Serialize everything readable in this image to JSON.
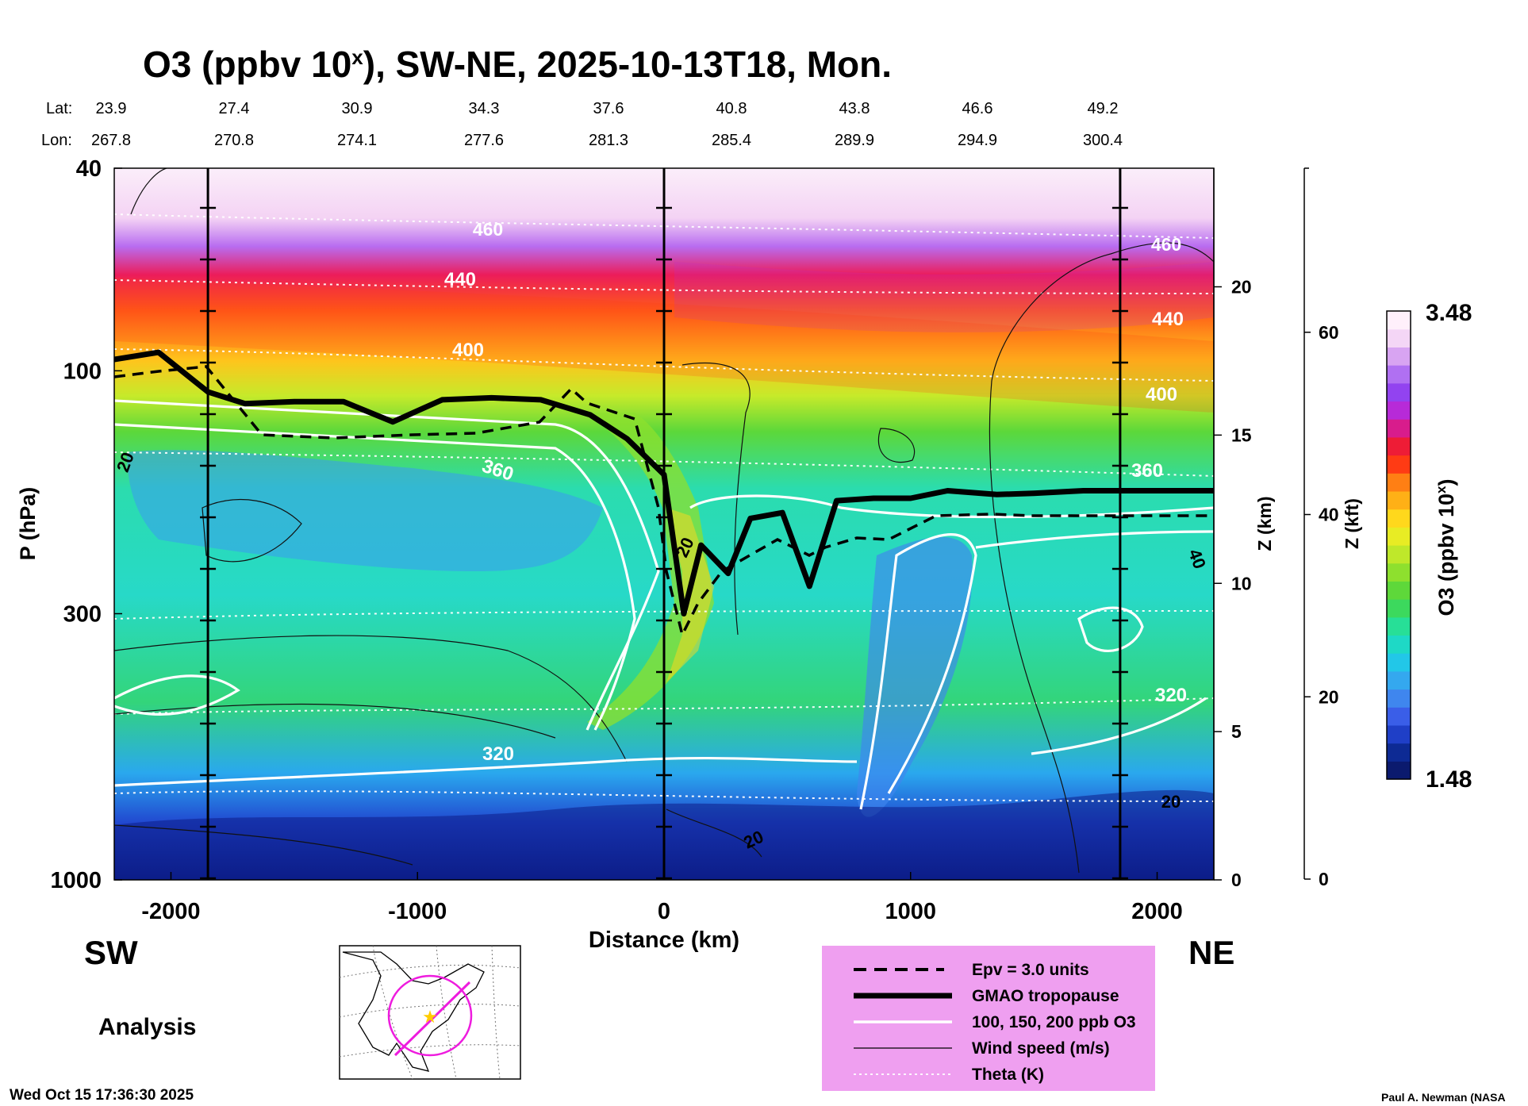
{
  "chart_data": {
    "type": "heatmap",
    "title_main": "O3 (ppbv 10",
    "title_sup": "x",
    "title_rest": "), SW-NE, 2025-10-13T18, Mon.",
    "lat_label": "Lat:",
    "lon_label": "Lon:",
    "lats": [
      "23.9",
      "27.4",
      "30.9",
      "34.3",
      "37.6",
      "40.8",
      "43.8",
      "46.6",
      "49.2"
    ],
    "lons": [
      "267.8",
      "270.8",
      "274.1",
      "277.6",
      "281.3",
      "285.4",
      "289.9",
      "294.9",
      "300.4"
    ],
    "xlabel": "Distance (km)",
    "xlim": [
      -2230,
      2230
    ],
    "x_ticks": [
      -2000,
      -1000,
      0,
      1000,
      2000
    ],
    "ylabel": "P (hPa)",
    "ylim": [
      1000,
      40
    ],
    "y_ticks": [
      40,
      100,
      300,
      1000
    ],
    "z_km_label": "Z (km)",
    "z_km_ticks": [
      0,
      5,
      10,
      15,
      20
    ],
    "z_kft_label": "Z (kft)",
    "z_kft_ticks": [
      0,
      20,
      40,
      60
    ],
    "colorbar_label": "O3 (ppbv 10",
    "colorbar_label_sup": "x",
    "colorbar_label_end": ")",
    "colorbar_range": [
      1.48,
      3.48
    ],
    "colorbar_max_label": "3.48",
    "colorbar_min_label": "1.48",
    "colorbar_colors": [
      "#0b1a6e",
      "#0d2a94",
      "#1f3fc7",
      "#3a5ee8",
      "#3f86ee",
      "#34a8ef",
      "#22c7e8",
      "#1ed9c6",
      "#27df97",
      "#3cd95d",
      "#5ed83a",
      "#8ee02e",
      "#bfe82a",
      "#e8ec24",
      "#ffd81c",
      "#ffb016",
      "#ff7f14",
      "#ff3b14",
      "#ee1c36",
      "#d81c8c",
      "#b72ad8",
      "#9243f0",
      "#b070f2",
      "#d8a4f2",
      "#f4d6f6",
      "#fff0fb"
    ],
    "vertical_markers_km": [
      -1850,
      0,
      1850
    ],
    "tropopause_pressure_hpa": [
      [
        -2230,
        95
      ],
      [
        -2050,
        92
      ],
      [
        -1850,
        110
      ],
      [
        -1700,
        116
      ],
      [
        -1500,
        115
      ],
      [
        -1300,
        115
      ],
      [
        -1100,
        126
      ],
      [
        -900,
        114
      ],
      [
        -700,
        113
      ],
      [
        -500,
        114
      ],
      [
        -300,
        122
      ],
      [
        -150,
        136
      ],
      [
        0,
        160
      ],
      [
        80,
        300
      ],
      [
        150,
        220
      ],
      [
        260,
        250
      ],
      [
        350,
        195
      ],
      [
        480,
        190
      ],
      [
        590,
        265
      ],
      [
        700,
        180
      ],
      [
        850,
        178
      ],
      [
        1000,
        178
      ],
      [
        1150,
        172
      ],
      [
        1350,
        175
      ],
      [
        1500,
        174
      ],
      [
        1700,
        172
      ],
      [
        2230,
        172
      ]
    ],
    "labels": {
      "contour_440": "440",
      "contour_400": "400",
      "contour_360": "360",
      "contour_320": "320",
      "contour_460": "460",
      "contour_20": "20",
      "contour_40": "40"
    },
    "legend": [
      {
        "label": "Epv = 3.0 units",
        "style": "dashed"
      },
      {
        "label": "GMAO tropopause",
        "style": "thick"
      },
      {
        "label": "100, 150, 200 ppb O3",
        "style": "white"
      },
      {
        "label": "Wind speed (m/s)",
        "style": "thin"
      },
      {
        "label": "Theta (K)",
        "style": "dotted"
      }
    ],
    "legend_bg": "#ef9ff0"
  },
  "annotations": {
    "sw": "SW",
    "ne": "NE",
    "analysis": "Analysis",
    "timestamp": "Wed Oct 15 17:36:30 2025",
    "credit": "Paul A. Newman (NASA"
  }
}
